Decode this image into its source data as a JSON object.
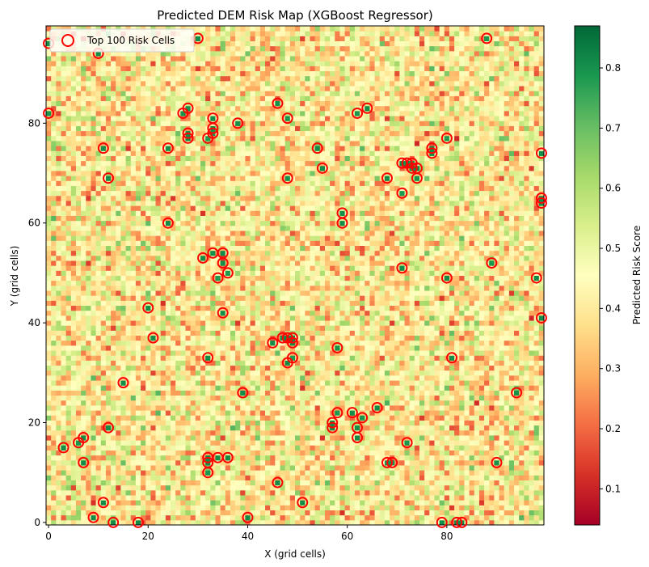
{
  "chart_data": {
    "type": "heatmap",
    "title": "Predicted DEM Risk Map (XGBoost Regressor)",
    "xlabel": "X (grid cells)",
    "ylabel": "Y (grid cells)",
    "colorbar_label": "Predicted Risk Score",
    "grid_size": [
      100,
      100
    ],
    "xlim": [
      0,
      99
    ],
    "ylim": [
      0,
      99
    ],
    "x_ticks": [
      0,
      20,
      40,
      60,
      80
    ],
    "y_ticks": [
      0,
      20,
      40,
      60,
      80
    ],
    "colorbar_range": [
      0.04,
      0.87
    ],
    "colorbar_ticks": [
      0.1,
      0.2,
      0.3,
      0.4,
      0.5,
      0.6,
      0.7,
      0.8
    ],
    "colormap": "RdYlGn",
    "colormap_stops": [
      "#a50026",
      "#d73027",
      "#f46d43",
      "#fdae61",
      "#fee08b",
      "#ffffbf",
      "#d9ef8b",
      "#a6d96a",
      "#66bd63",
      "#1a9850",
      "#006837"
    ],
    "grid": false,
    "legend": {
      "position": "top-left",
      "entries": [
        "Top 100 Risk Cells"
      ]
    },
    "marker_color": "#ff0000",
    "top_risk_cells": [
      [
        0,
        96
      ],
      [
        0,
        82
      ],
      [
        10,
        94
      ],
      [
        30,
        97
      ],
      [
        88,
        97
      ],
      [
        46,
        84
      ],
      [
        48,
        81
      ],
      [
        27,
        82
      ],
      [
        28,
        83
      ],
      [
        38,
        80
      ],
      [
        33,
        81
      ],
      [
        33,
        79
      ],
      [
        33,
        78
      ],
      [
        28,
        78
      ],
      [
        28,
        77
      ],
      [
        32,
        77
      ],
      [
        62,
        82
      ],
      [
        64,
        83
      ],
      [
        80,
        77
      ],
      [
        11,
        75
      ],
      [
        24,
        75
      ],
      [
        54,
        75
      ],
      [
        55,
        71
      ],
      [
        77,
        75
      ],
      [
        77,
        74
      ],
      [
        99,
        74
      ],
      [
        71,
        72
      ],
      [
        72,
        72
      ],
      [
        73,
        72
      ],
      [
        74,
        71
      ],
      [
        73,
        71
      ],
      [
        74,
        69
      ],
      [
        68,
        69
      ],
      [
        48,
        69
      ],
      [
        12,
        69
      ],
      [
        71,
        66
      ],
      [
        59,
        62
      ],
      [
        59,
        60
      ],
      [
        24,
        60
      ],
      [
        99,
        65
      ],
      [
        99,
        64
      ],
      [
        33,
        54
      ],
      [
        35,
        54
      ],
      [
        31,
        53
      ],
      [
        35,
        52
      ],
      [
        36,
        50
      ],
      [
        34,
        49
      ],
      [
        89,
        52
      ],
      [
        71,
        51
      ],
      [
        80,
        49
      ],
      [
        98,
        49
      ],
      [
        20,
        43
      ],
      [
        35,
        42
      ],
      [
        99,
        41
      ],
      [
        21,
        37
      ],
      [
        45,
        36
      ],
      [
        47,
        37
      ],
      [
        48,
        37
      ],
      [
        49,
        37
      ],
      [
        49,
        36
      ],
      [
        49,
        33
      ],
      [
        48,
        32
      ],
      [
        32,
        33
      ],
      [
        58,
        35
      ],
      [
        81,
        33
      ],
      [
        15,
        28
      ],
      [
        39,
        26
      ],
      [
        66,
        23
      ],
      [
        94,
        26
      ],
      [
        58,
        22
      ],
      [
        61,
        22
      ],
      [
        63,
        21
      ],
      [
        57,
        20
      ],
      [
        57,
        19
      ],
      [
        62,
        19
      ],
      [
        62,
        17
      ],
      [
        72,
        16
      ],
      [
        3,
        15
      ],
      [
        6,
        16
      ],
      [
        7,
        17
      ],
      [
        12,
        19
      ],
      [
        7,
        12
      ],
      [
        32,
        13
      ],
      [
        32,
        12
      ],
      [
        34,
        13
      ],
      [
        36,
        13
      ],
      [
        32,
        10
      ],
      [
        68,
        12
      ],
      [
        69,
        12
      ],
      [
        90,
        12
      ],
      [
        46,
        8
      ],
      [
        11,
        4
      ],
      [
        51,
        4
      ],
      [
        9,
        1
      ],
      [
        13,
        0
      ],
      [
        18,
        0
      ],
      [
        40,
        1
      ],
      [
        79,
        0
      ],
      [
        82,
        0
      ],
      [
        83,
        0
      ]
    ]
  }
}
